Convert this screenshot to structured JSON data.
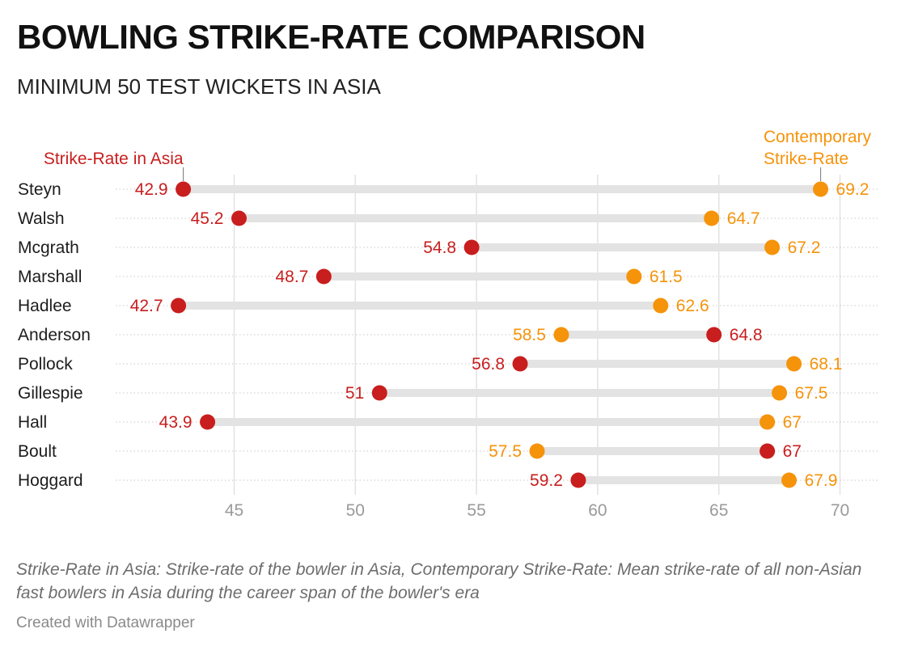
{
  "chart_data": {
    "type": "dot",
    "title": "BOWLING STRIKE-RATE COMPARISON",
    "subtitle": "MINIMUM 50 TEST WICKETS IN ASIA",
    "categories": [
      "Steyn",
      "Walsh",
      "Mcgrath",
      "Marshall",
      "Hadlee",
      "Anderson",
      "Pollock",
      "Gillespie",
      "Hall",
      "Boult",
      "Hoggard"
    ],
    "series": [
      {
        "name": "Strike-Rate in Asia",
        "color": "#c81e1e",
        "values": [
          42.9,
          45.2,
          54.8,
          48.7,
          42.7,
          64.8,
          56.8,
          51,
          43.9,
          67,
          59.2
        ],
        "labels": [
          "42.9",
          "45.2",
          "54.8",
          "48.7",
          "42.7",
          "64.8",
          "56.8",
          "51",
          "43.9",
          "67",
          "59.2"
        ]
      },
      {
        "name": "Contemporary Strike-Rate",
        "color": "#f5930a",
        "values": [
          69.2,
          64.7,
          67.2,
          61.5,
          62.6,
          58.5,
          68.1,
          67.5,
          67,
          57.5,
          67.9
        ],
        "labels": [
          "69.2",
          "64.7",
          "67.2",
          "61.5",
          "62.6",
          "58.5",
          "68.1",
          "67.5",
          "67",
          "57.5",
          "67.9"
        ]
      }
    ],
    "legend": {
      "asia_label": "Strike-Rate in Asia",
      "contemporary_label_lines": [
        "Contemporary",
        "Strike-Rate"
      ]
    },
    "xlim": [
      40,
      72
    ],
    "xticks": [
      45,
      50,
      55,
      60,
      65,
      70
    ],
    "xtick_labels": [
      "45",
      "50",
      "55",
      "60",
      "65",
      "70"
    ],
    "grid": true
  },
  "notes": "Strike-Rate in Asia: Strike-rate of the bowler in Asia, Contemporary Strike-Rate: Mean strike-rate of all non-Asian fast bowlers in Asia during the career span of the bowler's era",
  "credit": "Created with Datawrapper"
}
